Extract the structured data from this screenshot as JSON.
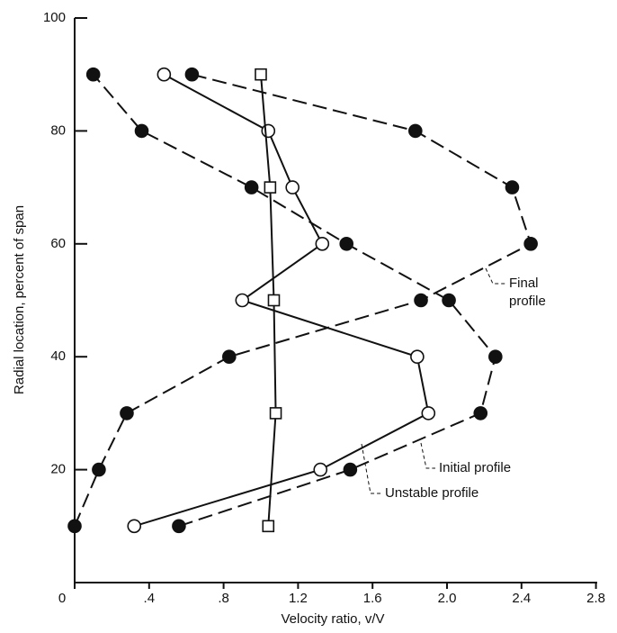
{
  "chart_data": {
    "type": "line",
    "x_label": "Velocity ratio, v/V",
    "y_label": "Radial location, percent of span",
    "xlim": [
      0,
      2.8
    ],
    "xticks": [
      0,
      {
        "value": 0.4,
        "label": ".4"
      },
      {
        "value": 0.8,
        "label": ".8"
      },
      1.2,
      1.6,
      {
        "value": 2,
        "label": "2.0"
      },
      2.4,
      2.8
    ],
    "ylim": [
      0,
      100
    ],
    "yticks": [
      20,
      40,
      60,
      80,
      100
    ],
    "series": [
      {
        "color": "#111111",
        "marker": "filled-circle",
        "dashed": true,
        "x": [
          0.0,
          0.13,
          0.28,
          0.83,
          1.86,
          2.45,
          2.35,
          1.83,
          0.63
        ],
        "values": [
          10,
          20,
          30,
          40,
          50,
          60,
          70,
          80,
          90
        ]
      },
      {
        "color": "#111111",
        "marker": "filled-circle",
        "dashed": true,
        "x": [
          0.56,
          1.48,
          2.18,
          2.26,
          2.01,
          1.46,
          0.95,
          0.36,
          0.1
        ],
        "values": [
          10,
          20,
          30,
          40,
          50,
          60,
          70,
          80,
          90
        ]
      },
      {
        "color": "#111111",
        "marker": "open-circle",
        "dashed": false,
        "x": [
          0.32,
          1.32,
          1.9,
          1.84,
          0.9,
          1.33,
          1.17,
          1.04,
          0.48
        ],
        "values": [
          10,
          20,
          30,
          40,
          50,
          60,
          70,
          80,
          90
        ]
      },
      {
        "color": "#111111",
        "marker": "square",
        "dashed": false,
        "x": [
          1.04,
          1.08,
          1.07,
          1.05,
          1.0
        ],
        "values": [
          10,
          30,
          50,
          70,
          90
        ]
      }
    ],
    "annotations": [
      {
        "lines": [
          "Final",
          "profile"
        ]
      },
      {
        "lines": [
          "Initial profile"
        ]
      },
      {
        "lines": [
          "Unstable profile"
        ]
      }
    ]
  }
}
